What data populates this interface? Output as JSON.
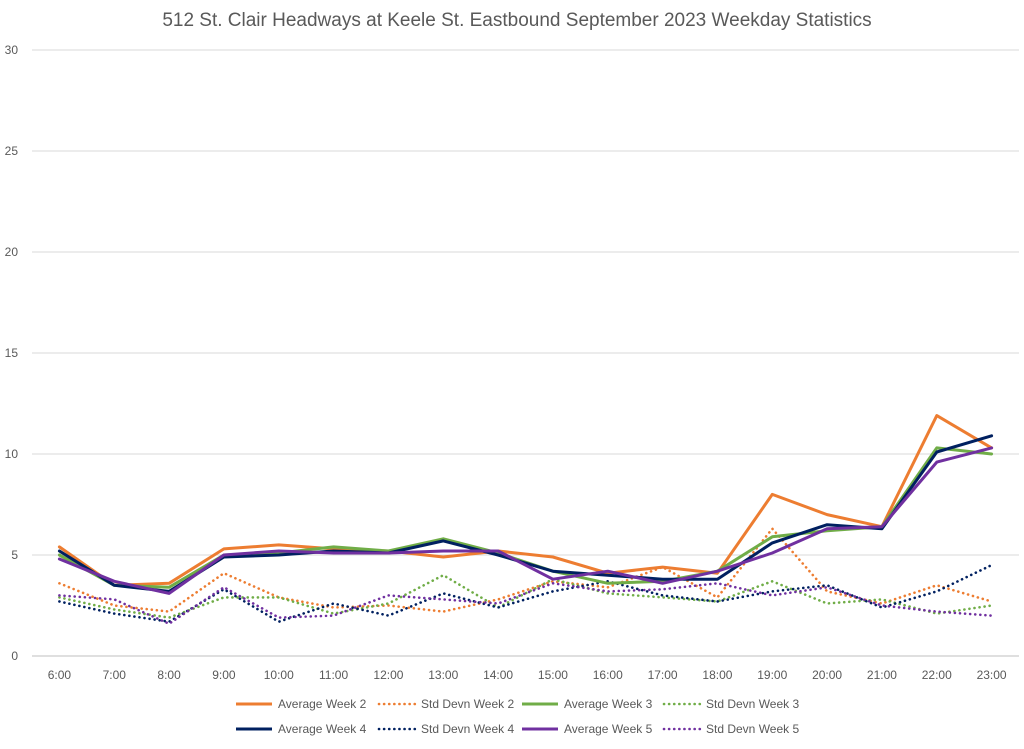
{
  "chart_data": {
    "type": "line",
    "title": "512 St. Clair Headways at Keele St. Eastbound September 2023 Weekday Statistics",
    "xlabel": "",
    "ylabel": "",
    "ylim": [
      0,
      30
    ],
    "yticks": [
      "0",
      "5",
      "10",
      "15",
      "20",
      "25",
      "30"
    ],
    "grid": true,
    "legend_position": "bottom",
    "categories": [
      "6:00",
      "7:00",
      "8:00",
      "9:00",
      "10:00",
      "11:00",
      "12:00",
      "13:00",
      "14:00",
      "15:00",
      "16:00",
      "17:00",
      "18:00",
      "19:00",
      "20:00",
      "21:00",
      "22:00",
      "23:00"
    ],
    "series": [
      {
        "name": "Average Week 2",
        "color": "#ED7D31",
        "style": "solid",
        "values": [
          5.4,
          3.5,
          3.6,
          5.3,
          5.5,
          5.3,
          5.2,
          4.9,
          5.2,
          4.9,
          4.1,
          4.4,
          4.1,
          8.0,
          7.0,
          6.4,
          11.9,
          10.3
        ]
      },
      {
        "name": "Std Devn Week 2",
        "color": "#ED7D31",
        "style": "dotted",
        "values": [
          3.6,
          2.5,
          2.2,
          4.1,
          2.9,
          2.4,
          2.5,
          2.2,
          2.8,
          3.7,
          3.4,
          4.4,
          2.9,
          6.3,
          3.2,
          2.6,
          3.5,
          2.7
        ]
      },
      {
        "name": "Average Week 3",
        "color": "#70AD47",
        "style": "solid",
        "values": [
          5.0,
          3.5,
          3.4,
          5.0,
          5.1,
          5.4,
          5.2,
          5.8,
          5.1,
          4.2,
          3.6,
          3.7,
          4.2,
          5.9,
          6.2,
          6.4,
          10.3,
          10.0
        ]
      },
      {
        "name": "Std Devn Week 3",
        "color": "#70AD47",
        "style": "dotted",
        "values": [
          2.9,
          2.3,
          1.9,
          2.9,
          2.9,
          2.1,
          2.6,
          4.0,
          2.4,
          3.8,
          3.1,
          2.9,
          2.7,
          3.7,
          2.6,
          2.8,
          2.1,
          2.5
        ]
      },
      {
        "name": "Average Week 4",
        "color": "#002060",
        "style": "solid",
        "values": [
          5.2,
          3.5,
          3.2,
          4.9,
          5.0,
          5.2,
          5.1,
          5.7,
          5.0,
          4.2,
          4.0,
          3.8,
          3.8,
          5.6,
          6.5,
          6.3,
          10.1,
          10.9
        ]
      },
      {
        "name": "Std Devn Week 4",
        "color": "#002060",
        "style": "dotted",
        "values": [
          2.7,
          2.1,
          1.7,
          3.3,
          1.7,
          2.6,
          2.0,
          3.1,
          2.4,
          3.2,
          3.7,
          3.0,
          2.7,
          3.2,
          3.5,
          2.4,
          3.2,
          4.5
        ]
      },
      {
        "name": "Average Week 5",
        "color": "#7030A0",
        "style": "solid",
        "values": [
          4.8,
          3.7,
          3.1,
          5.0,
          5.2,
          5.1,
          5.1,
          5.2,
          5.2,
          3.8,
          4.2,
          3.6,
          4.2,
          5.1,
          6.3,
          6.4,
          9.6,
          10.3
        ]
      },
      {
        "name": "Std Devn Week 5",
        "color": "#7030A0",
        "style": "dotted",
        "values": [
          3.0,
          2.8,
          1.6,
          3.4,
          1.9,
          2.0,
          3.0,
          2.8,
          2.6,
          3.6,
          3.2,
          3.3,
          3.6,
          3.0,
          3.4,
          2.5,
          2.2,
          2.0
        ]
      }
    ]
  }
}
